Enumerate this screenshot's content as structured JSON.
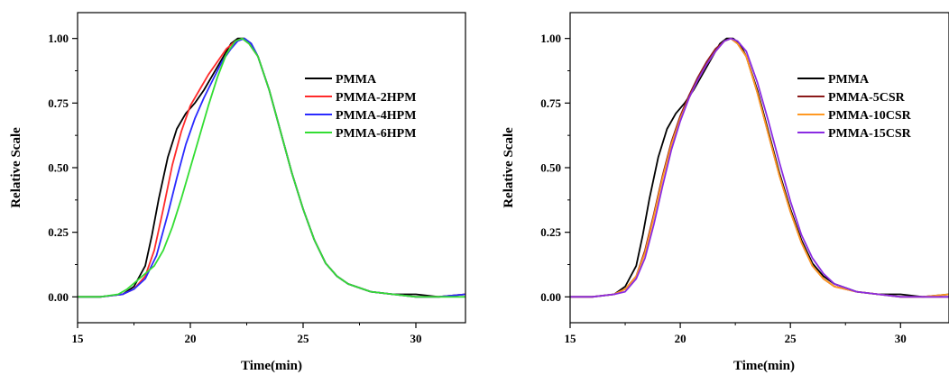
{
  "chart_data": [
    {
      "type": "line",
      "title": "",
      "xlabel": "Time(min)",
      "ylabel": "Relative Scale",
      "xlim": [
        15,
        32.2
      ],
      "ylim": [
        -0.1,
        1.1
      ],
      "xticks": [
        15,
        20,
        25,
        30
      ],
      "yticks": [
        0.0,
        0.25,
        0.5,
        0.75,
        1.0
      ],
      "ytick_labels": [
        "0.00",
        "0.25",
        "0.50",
        "0.75",
        "1.00"
      ],
      "grid": false,
      "legend_position": "top-right",
      "series": [
        {
          "name": "PMMA",
          "color": "#000000",
          "x": [
            15,
            16,
            17,
            17.5,
            18,
            18.3,
            18.6,
            19,
            19.4,
            19.8,
            20.2,
            20.6,
            21,
            21.4,
            21.8,
            22.1,
            22.4,
            22.7,
            23,
            23.5,
            24,
            24.5,
            25,
            25.5,
            26,
            26.5,
            27,
            28,
            29,
            30,
            31,
            32.2
          ],
          "y": [
            0,
            0,
            0.01,
            0.04,
            0.12,
            0.24,
            0.38,
            0.54,
            0.65,
            0.71,
            0.75,
            0.8,
            0.86,
            0.92,
            0.98,
            1.0,
            1.0,
            0.98,
            0.93,
            0.8,
            0.64,
            0.48,
            0.34,
            0.22,
            0.13,
            0.08,
            0.05,
            0.02,
            0.01,
            0.01,
            0.0,
            0.01
          ]
        },
        {
          "name": "PMMA-2HPM",
          "color": "#ff2a2a",
          "x": [
            15,
            16,
            17,
            17.5,
            18,
            18.4,
            18.8,
            19.2,
            19.6,
            20,
            20.4,
            20.8,
            21.2,
            21.6,
            22,
            22.3,
            22.6,
            23,
            23.5,
            24,
            24.5,
            25,
            25.5,
            26,
            26.5,
            27,
            28,
            29,
            30,
            31,
            32.2
          ],
          "y": [
            0,
            0,
            0.01,
            0.03,
            0.08,
            0.18,
            0.34,
            0.51,
            0.64,
            0.74,
            0.8,
            0.86,
            0.91,
            0.96,
            0.99,
            1.0,
            0.98,
            0.93,
            0.8,
            0.64,
            0.48,
            0.34,
            0.22,
            0.13,
            0.08,
            0.05,
            0.02,
            0.01,
            0.0,
            0.0,
            0.01
          ]
        },
        {
          "name": "PMMA-4HPM",
          "color": "#2a2aff",
          "x": [
            15,
            16,
            17,
            17.5,
            18,
            18.5,
            19,
            19.4,
            19.8,
            20.2,
            20.6,
            21,
            21.4,
            21.8,
            22.1,
            22.4,
            22.7,
            23,
            23.5,
            24,
            24.5,
            25,
            25.5,
            26,
            26.5,
            27,
            28,
            29,
            30,
            31,
            32.2
          ],
          "y": [
            0,
            0,
            0.01,
            0.03,
            0.07,
            0.16,
            0.32,
            0.46,
            0.59,
            0.69,
            0.77,
            0.84,
            0.91,
            0.96,
            0.99,
            1.0,
            0.98,
            0.93,
            0.8,
            0.64,
            0.48,
            0.34,
            0.22,
            0.13,
            0.08,
            0.05,
            0.02,
            0.01,
            0.0,
            0.0,
            0.01
          ]
        },
        {
          "name": "PMMA-6HPM",
          "color": "#33dd33",
          "x": [
            15,
            16,
            16.8,
            17.2,
            17.6,
            18,
            18.4,
            18.8,
            19.2,
            19.6,
            20,
            20.4,
            20.8,
            21.2,
            21.6,
            22,
            22.3,
            22.6,
            23,
            23.5,
            24,
            24.5,
            25,
            25.5,
            26,
            26.5,
            27,
            28,
            29,
            30,
            31,
            32.2
          ],
          "y": [
            0,
            0,
            0.01,
            0.03,
            0.06,
            0.09,
            0.12,
            0.18,
            0.27,
            0.38,
            0.5,
            0.62,
            0.74,
            0.85,
            0.94,
            0.99,
            1.0,
            0.98,
            0.93,
            0.8,
            0.64,
            0.48,
            0.34,
            0.22,
            0.13,
            0.08,
            0.05,
            0.02,
            0.01,
            0.0,
            0.0,
            0.0
          ]
        }
      ]
    },
    {
      "type": "line",
      "title": "",
      "xlabel": "Time(min)",
      "ylabel": "Relative Scale",
      "xlim": [
        15,
        32.2
      ],
      "ylim": [
        -0.1,
        1.1
      ],
      "xticks": [
        15,
        20,
        25,
        30
      ],
      "yticks": [
        0.0,
        0.25,
        0.5,
        0.75,
        1.0
      ],
      "ytick_labels": [
        "0.00",
        "0.25",
        "0.50",
        "0.75",
        "1.00"
      ],
      "grid": false,
      "legend_position": "top-right",
      "series": [
        {
          "name": "PMMA",
          "color": "#000000",
          "x": [
            15,
            16,
            17,
            17.5,
            18,
            18.3,
            18.6,
            19,
            19.4,
            19.8,
            20.2,
            20.6,
            21,
            21.4,
            21.8,
            22.1,
            22.4,
            22.7,
            23,
            23.5,
            24,
            24.5,
            25,
            25.5,
            26,
            26.5,
            27,
            28,
            29,
            30,
            31,
            32.2
          ],
          "y": [
            0,
            0,
            0.01,
            0.04,
            0.12,
            0.24,
            0.38,
            0.54,
            0.65,
            0.71,
            0.75,
            0.8,
            0.86,
            0.92,
            0.98,
            1.0,
            1.0,
            0.98,
            0.93,
            0.8,
            0.64,
            0.48,
            0.34,
            0.22,
            0.13,
            0.08,
            0.05,
            0.02,
            0.01,
            0.01,
            0.0,
            0.01
          ]
        },
        {
          "name": "PMMA-5CSR",
          "color": "#8b1a1a",
          "x": [
            15,
            16,
            17,
            17.5,
            18,
            18.4,
            18.8,
            19.2,
            19.6,
            20,
            20.4,
            20.8,
            21.2,
            21.6,
            22,
            22.3,
            22.6,
            23,
            23.5,
            24,
            24.5,
            25,
            25.5,
            26,
            26.5,
            27,
            28,
            29,
            30,
            31,
            32.2
          ],
          "y": [
            0,
            0,
            0.01,
            0.03,
            0.08,
            0.18,
            0.32,
            0.47,
            0.6,
            0.7,
            0.78,
            0.85,
            0.91,
            0.96,
            0.99,
            1.0,
            0.98,
            0.93,
            0.79,
            0.63,
            0.47,
            0.33,
            0.21,
            0.12,
            0.07,
            0.04,
            0.02,
            0.01,
            0.0,
            0.0,
            0.0
          ]
        },
        {
          "name": "PMMA-10CSR",
          "color": "#ff9922",
          "x": [
            15,
            16,
            17,
            17.5,
            18,
            18.4,
            18.8,
            19.2,
            19.6,
            20,
            20.4,
            20.8,
            21.2,
            21.6,
            22,
            22.3,
            22.6,
            23,
            23.5,
            24,
            24.5,
            25,
            25.5,
            26,
            26.5,
            27,
            28,
            29,
            30,
            31,
            32.2
          ],
          "y": [
            0,
            0,
            0.01,
            0.03,
            0.08,
            0.17,
            0.31,
            0.46,
            0.59,
            0.69,
            0.77,
            0.84,
            0.9,
            0.95,
            0.99,
            1.0,
            0.98,
            0.93,
            0.79,
            0.63,
            0.47,
            0.33,
            0.21,
            0.12,
            0.07,
            0.04,
            0.02,
            0.01,
            0.0,
            0.0,
            0.01
          ]
        },
        {
          "name": "PMMA-15CSR",
          "color": "#8a2be2",
          "x": [
            15,
            16,
            17,
            17.5,
            18,
            18.4,
            18.8,
            19.2,
            19.6,
            20,
            20.4,
            20.8,
            21.2,
            21.6,
            22,
            22.3,
            22.6,
            23,
            23.5,
            24,
            24.5,
            25,
            25.5,
            26,
            26.5,
            27,
            28,
            29,
            30,
            31,
            32.2
          ],
          "y": [
            0,
            0,
            0.01,
            0.02,
            0.07,
            0.15,
            0.28,
            0.43,
            0.57,
            0.68,
            0.77,
            0.84,
            0.9,
            0.95,
            0.99,
            1.0,
            0.99,
            0.95,
            0.83,
            0.68,
            0.52,
            0.37,
            0.24,
            0.15,
            0.09,
            0.05,
            0.02,
            0.01,
            0.0,
            0.0,
            0.0
          ]
        }
      ]
    }
  ]
}
